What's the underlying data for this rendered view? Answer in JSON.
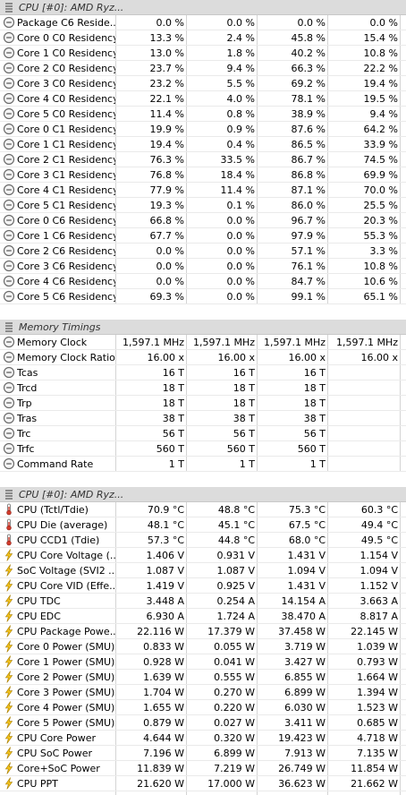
{
  "sections": [
    {
      "title": "CPU [#0]: AMD Ryz...",
      "rows": [
        {
          "icon": "clock-icon",
          "label": "Package C6 Reside...",
          "v": [
            "0.0 %",
            "0.0 %",
            "0.0 %",
            "0.0 %"
          ]
        },
        {
          "icon": "clock-icon",
          "label": "Core 0 C0 Residency",
          "v": [
            "13.3 %",
            "2.4 %",
            "45.8 %",
            "15.4 %"
          ]
        },
        {
          "icon": "clock-icon",
          "label": "Core 1 C0 Residency",
          "v": [
            "13.0 %",
            "1.8 %",
            "40.2 %",
            "10.8 %"
          ]
        },
        {
          "icon": "clock-icon",
          "label": "Core 2 C0 Residency",
          "v": [
            "23.7 %",
            "9.4 %",
            "66.3 %",
            "22.2 %"
          ]
        },
        {
          "icon": "clock-icon",
          "label": "Core 3 C0 Residency",
          "v": [
            "23.2 %",
            "5.5 %",
            "69.2 %",
            "19.4 %"
          ]
        },
        {
          "icon": "clock-icon",
          "label": "Core 4 C0 Residency",
          "v": [
            "22.1 %",
            "4.0 %",
            "78.1 %",
            "19.5 %"
          ]
        },
        {
          "icon": "clock-icon",
          "label": "Core 5 C0 Residency",
          "v": [
            "11.4 %",
            "0.8 %",
            "38.9 %",
            "9.4 %"
          ]
        },
        {
          "icon": "clock-icon",
          "label": "Core 0 C1 Residency",
          "v": [
            "19.9 %",
            "0.9 %",
            "87.6 %",
            "64.2 %"
          ]
        },
        {
          "icon": "clock-icon",
          "label": "Core 1 C1 Residency",
          "v": [
            "19.4 %",
            "0.4 %",
            "86.5 %",
            "33.9 %"
          ]
        },
        {
          "icon": "clock-icon",
          "label": "Core 2 C1 Residency",
          "v": [
            "76.3 %",
            "33.5 %",
            "86.7 %",
            "74.5 %"
          ]
        },
        {
          "icon": "clock-icon",
          "label": "Core 3 C1 Residency",
          "v": [
            "76.8 %",
            "18.4 %",
            "86.8 %",
            "69.9 %"
          ]
        },
        {
          "icon": "clock-icon",
          "label": "Core 4 C1 Residency",
          "v": [
            "77.9 %",
            "11.4 %",
            "87.1 %",
            "70.0 %"
          ]
        },
        {
          "icon": "clock-icon",
          "label": "Core 5 C1 Residency",
          "v": [
            "19.3 %",
            "0.1 %",
            "86.0 %",
            "25.5 %"
          ]
        },
        {
          "icon": "clock-icon",
          "label": "Core 0 C6 Residency",
          "v": [
            "66.8 %",
            "0.0 %",
            "96.7 %",
            "20.3 %"
          ]
        },
        {
          "icon": "clock-icon",
          "label": "Core 1 C6 Residency",
          "v": [
            "67.7 %",
            "0.0 %",
            "97.9 %",
            "55.3 %"
          ]
        },
        {
          "icon": "clock-icon",
          "label": "Core 2 C6 Residency",
          "v": [
            "0.0 %",
            "0.0 %",
            "57.1 %",
            "3.3 %"
          ]
        },
        {
          "icon": "clock-icon",
          "label": "Core 3 C6 Residency",
          "v": [
            "0.0 %",
            "0.0 %",
            "76.1 %",
            "10.8 %"
          ]
        },
        {
          "icon": "clock-icon",
          "label": "Core 4 C6 Residency",
          "v": [
            "0.0 %",
            "0.0 %",
            "84.7 %",
            "10.6 %"
          ]
        },
        {
          "icon": "clock-icon",
          "label": "Core 5 C6 Residency",
          "v": [
            "69.3 %",
            "0.0 %",
            "99.1 %",
            "65.1 %"
          ]
        }
      ]
    },
    {
      "title": "Memory Timings",
      "rows": [
        {
          "icon": "clock-icon",
          "label": "Memory Clock",
          "v": [
            "1,597.1 MHz",
            "1,597.1 MHz",
            "1,597.1 MHz",
            "1,597.1 MHz"
          ]
        },
        {
          "icon": "clock-icon",
          "label": "Memory Clock Ratio",
          "v": [
            "16.00 x",
            "16.00 x",
            "16.00 x",
            "16.00 x"
          ]
        },
        {
          "icon": "clock-icon",
          "label": "Tcas",
          "v": [
            "16 T",
            "16 T",
            "16 T",
            ""
          ]
        },
        {
          "icon": "clock-icon",
          "label": "Trcd",
          "v": [
            "18 T",
            "18 T",
            "18 T",
            ""
          ]
        },
        {
          "icon": "clock-icon",
          "label": "Trp",
          "v": [
            "18 T",
            "18 T",
            "18 T",
            ""
          ]
        },
        {
          "icon": "clock-icon",
          "label": "Tras",
          "v": [
            "38 T",
            "38 T",
            "38 T",
            ""
          ]
        },
        {
          "icon": "clock-icon",
          "label": "Trc",
          "v": [
            "56 T",
            "56 T",
            "56 T",
            ""
          ]
        },
        {
          "icon": "clock-icon",
          "label": "Trfc",
          "v": [
            "560 T",
            "560 T",
            "560 T",
            ""
          ]
        },
        {
          "icon": "clock-icon",
          "label": "Command Rate",
          "v": [
            "1 T",
            "1 T",
            "1 T",
            ""
          ]
        }
      ]
    },
    {
      "title": "CPU [#0]: AMD Ryz...",
      "rows": [
        {
          "icon": "thermometer-icon",
          "label": "CPU (Tctl/Tdie)",
          "v": [
            "70.9 °C",
            "48.8 °C",
            "75.3 °C",
            "60.3 °C"
          ]
        },
        {
          "icon": "thermometer-icon",
          "label": "CPU Die (average)",
          "v": [
            "48.1 °C",
            "45.1 °C",
            "67.5 °C",
            "49.4 °C"
          ]
        },
        {
          "icon": "thermometer-icon",
          "label": "CPU CCD1 (Tdie)",
          "v": [
            "57.3 °C",
            "44.8 °C",
            "68.0 °C",
            "49.5 °C"
          ]
        },
        {
          "icon": "lightning-icon",
          "label": "CPU Core Voltage (...",
          "v": [
            "1.406 V",
            "0.931 V",
            "1.431 V",
            "1.154 V"
          ]
        },
        {
          "icon": "lightning-icon",
          "label": "SoC Voltage (SVI2 ...",
          "v": [
            "1.087 V",
            "1.087 V",
            "1.094 V",
            "1.094 V"
          ]
        },
        {
          "icon": "lightning-icon",
          "label": "CPU Core VID (Effe...",
          "v": [
            "1.419 V",
            "0.925 V",
            "1.431 V",
            "1.152 V"
          ]
        },
        {
          "icon": "lightning-icon",
          "label": "CPU TDC",
          "v": [
            "3.448 A",
            "0.254 A",
            "14.154 A",
            "3.663 A"
          ]
        },
        {
          "icon": "lightning-icon",
          "label": "CPU EDC",
          "v": [
            "6.930 A",
            "1.724 A",
            "38.470 A",
            "8.817 A"
          ]
        },
        {
          "icon": "lightning-icon",
          "label": "CPU Package Powe...",
          "v": [
            "22.116 W",
            "17.379 W",
            "37.458 W",
            "22.145 W"
          ]
        },
        {
          "icon": "lightning-icon",
          "label": "Core 0 Power (SMU)",
          "v": [
            "0.833 W",
            "0.055 W",
            "3.719 W",
            "1.039 W"
          ]
        },
        {
          "icon": "lightning-icon",
          "label": "Core 1 Power (SMU)",
          "v": [
            "0.928 W",
            "0.041 W",
            "3.427 W",
            "0.793 W"
          ]
        },
        {
          "icon": "lightning-icon",
          "label": "Core 2 Power (SMU)",
          "v": [
            "1.639 W",
            "0.555 W",
            "6.855 W",
            "1.664 W"
          ]
        },
        {
          "icon": "lightning-icon",
          "label": "Core 3 Power (SMU)",
          "v": [
            "1.704 W",
            "0.270 W",
            "6.899 W",
            "1.394 W"
          ]
        },
        {
          "icon": "lightning-icon",
          "label": "Core 4 Power (SMU)",
          "v": [
            "1.655 W",
            "0.220 W",
            "6.030 W",
            "1.523 W"
          ]
        },
        {
          "icon": "lightning-icon",
          "label": "Core 5 Power (SMU)",
          "v": [
            "0.879 W",
            "0.027 W",
            "3.411 W",
            "0.685 W"
          ]
        },
        {
          "icon": "lightning-icon",
          "label": "CPU Core Power",
          "v": [
            "4.644 W",
            "0.320 W",
            "19.423 W",
            "4.718 W"
          ]
        },
        {
          "icon": "lightning-icon",
          "label": "CPU SoC Power",
          "v": [
            "7.196 W",
            "6.899 W",
            "7.913 W",
            "7.135 W"
          ]
        },
        {
          "icon": "lightning-icon",
          "label": "Core+SoC Power",
          "v": [
            "11.839 W",
            "7.219 W",
            "26.749 W",
            "11.854 W"
          ]
        },
        {
          "icon": "lightning-icon",
          "label": "CPU PPT",
          "v": [
            "21.620 W",
            "17.000 W",
            "36.623 W",
            "21.662 W"
          ]
        }
      ]
    }
  ]
}
